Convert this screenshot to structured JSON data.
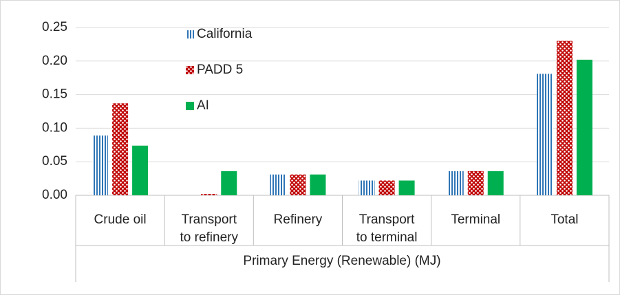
{
  "chart_data": {
    "type": "bar",
    "x_label": "Primary Energy (Renewable) (MJ)",
    "categories": [
      "Crude oil",
      "Transport to refinery",
      "Refinery",
      "Transport to terminal",
      "Terminal",
      "Total"
    ],
    "series": [
      {
        "name": "California",
        "color": "#2e75b6",
        "pattern": "vertical-lines",
        "values": [
          0.089,
          0,
          0.031,
          0.022,
          0.036,
          0.181
        ]
      },
      {
        "name": "PADD 5",
        "color": "#c00000",
        "pattern": "dots",
        "values": [
          0.137,
          0.002,
          0.031,
          0.022,
          0.036,
          0.23
        ]
      },
      {
        "name": "AI",
        "color": "#00b050",
        "values": [
          0.074,
          0.036,
          0.031,
          0.022,
          0.036,
          0.202
        ]
      }
    ],
    "ylim": [
      0,
      0.25
    ],
    "yticks": [
      {
        "value": 0,
        "label": "0.00"
      },
      {
        "value": 0.05,
        "label": "0.05"
      },
      {
        "value": 0.1,
        "label": "0.10"
      },
      {
        "value": 0.15,
        "label": "0.15"
      },
      {
        "value": 0.2,
        "label": "0.20"
      },
      {
        "value": 0.25,
        "label": "0.25"
      }
    ],
    "grid": true,
    "legend": "top-left"
  }
}
